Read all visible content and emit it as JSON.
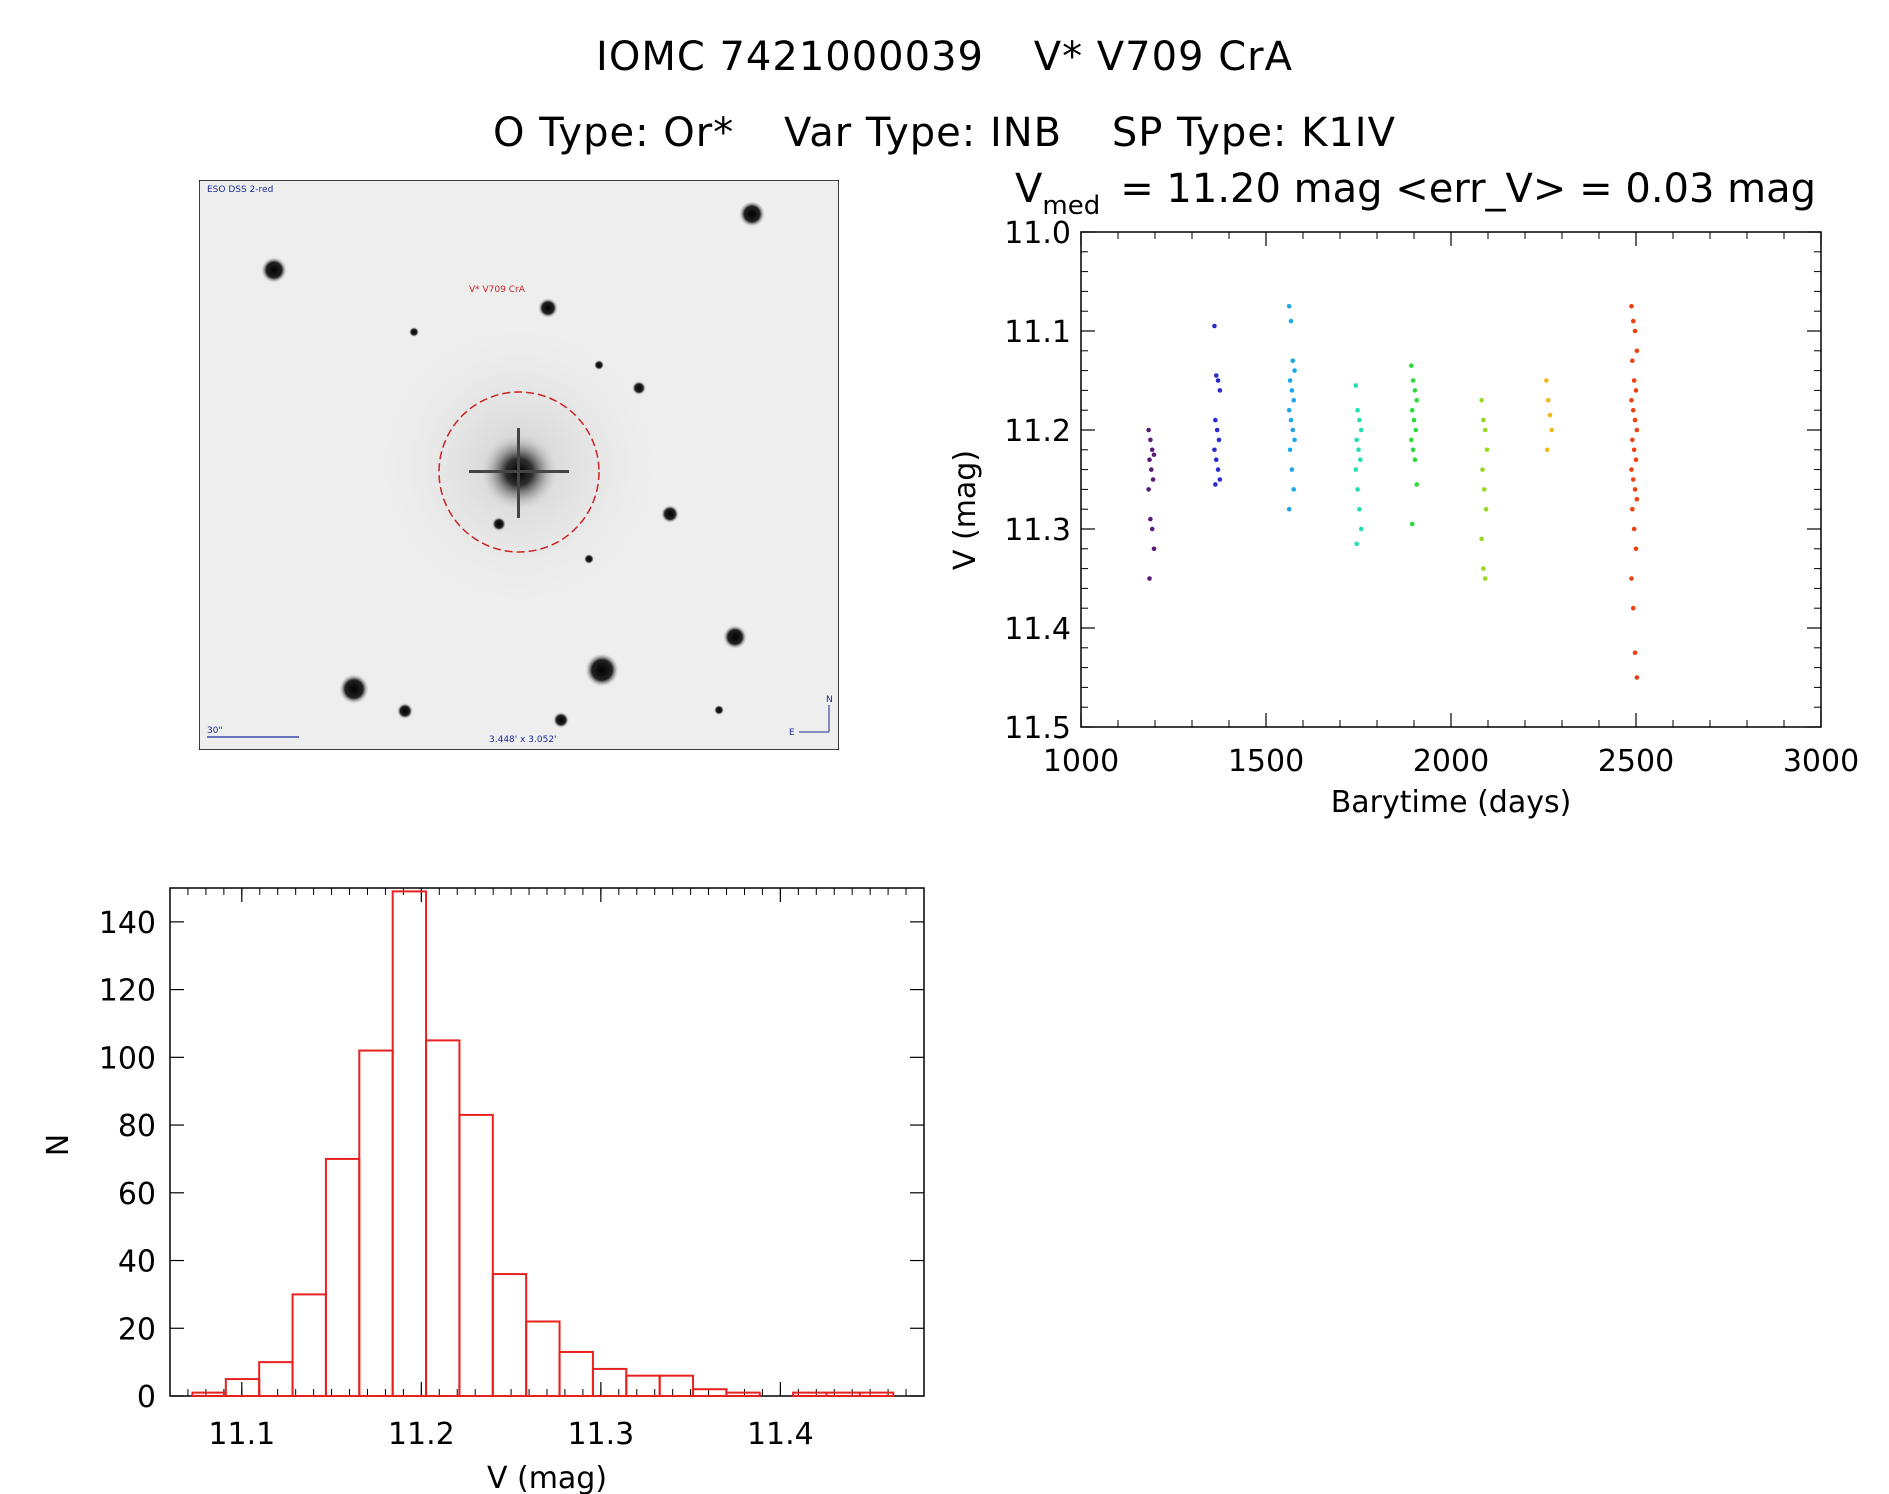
{
  "header": {
    "line1": [
      "IOMC 7421000039",
      "V* V709 CrA"
    ],
    "line2": [
      "O Type: Or*",
      "Var Type: INB",
      "SP Type: K1IV"
    ]
  },
  "finder": {
    "survey_label": "ESO DSS 2-red",
    "target_label": "V* V709 CrA",
    "scale_label": "30\"",
    "fov_label": "3.448' x 3.052'",
    "compass_n": "N",
    "compass_e": "E"
  },
  "chart_data": [
    {
      "type": "scatter",
      "title_v": "V",
      "title_sub": "med",
      "title_rest": "= 11.20 mag <err_V> = 0.03 mag",
      "xlabel": "Barytime (days)",
      "ylabel": "V (mag)",
      "xlim": [
        1000,
        3000
      ],
      "ylim": [
        11.5,
        11.0
      ],
      "y_inverted": true,
      "xticks": [
        "1000",
        "1500",
        "2000",
        "2500",
        "3000"
      ],
      "yticks": [
        "11.0",
        "11.1",
        "11.2",
        "11.3",
        "11.4",
        "11.5"
      ],
      "groups": [
        {
          "x": 1190,
          "color": "#5a1a7a",
          "y": [
            11.2,
            11.21,
            11.22,
            11.225,
            11.23,
            11.24,
            11.25,
            11.26,
            11.29,
            11.3,
            11.32,
            11.35
          ]
        },
        {
          "x": 1368,
          "color": "#2a2ad0",
          "y": [
            11.095,
            11.145,
            11.15,
            11.16,
            11.19,
            11.2,
            11.21,
            11.22,
            11.23,
            11.24,
            11.25,
            11.255
          ]
        },
        {
          "x": 1570,
          "color": "#1aa8e8",
          "y": [
            11.075,
            11.09,
            11.13,
            11.14,
            11.15,
            11.16,
            11.17,
            11.18,
            11.19,
            11.2,
            11.21,
            11.22,
            11.24,
            11.26,
            11.28
          ]
        },
        {
          "x": 1750,
          "color": "#1ee0b0",
          "y": [
            11.155,
            11.18,
            11.19,
            11.2,
            11.21,
            11.22,
            11.23,
            11.24,
            11.26,
            11.28,
            11.3,
            11.315
          ]
        },
        {
          "x": 1900,
          "color": "#2adc3a",
          "y": [
            11.135,
            11.15,
            11.16,
            11.17,
            11.18,
            11.19,
            11.2,
            11.21,
            11.22,
            11.23,
            11.255,
            11.295
          ]
        },
        {
          "x": 2090,
          "color": "#98d820",
          "y": [
            11.17,
            11.19,
            11.2,
            11.22,
            11.24,
            11.26,
            11.28,
            11.31,
            11.34,
            11.35
          ]
        },
        {
          "x": 2265,
          "color": "#f0b818",
          "y": [
            11.15,
            11.17,
            11.185,
            11.2,
            11.22
          ]
        },
        {
          "x": 2495,
          "color": "#f04010",
          "y": [
            11.075,
            11.09,
            11.1,
            11.12,
            11.13,
            11.15,
            11.16,
            11.17,
            11.18,
            11.19,
            11.2,
            11.21,
            11.22,
            11.23,
            11.24,
            11.25,
            11.26,
            11.27,
            11.28,
            11.3,
            11.32,
            11.35,
            11.38,
            11.425,
            11.45
          ]
        }
      ]
    },
    {
      "type": "bar",
      "subtype": "histogram",
      "xlabel": "V (mag)",
      "ylabel": "N",
      "xlim": [
        11.06,
        11.48
      ],
      "ylim": [
        0,
        150
      ],
      "xticks": [
        "11.1",
        "11.2",
        "11.3",
        "11.4"
      ],
      "yticks": [
        "0",
        "20",
        "40",
        "60",
        "80",
        "100",
        "120",
        "140"
      ],
      "bin_width": 0.01859,
      "bin_start": 11.0725,
      "counts": [
        1,
        5,
        10,
        30,
        70,
        102,
        149,
        105,
        83,
        36,
        22,
        13,
        8,
        6,
        6,
        2,
        1,
        0,
        1,
        1,
        1
      ]
    }
  ],
  "colors": {
    "hist_line": "#e82020",
    "axis": "#000000"
  }
}
